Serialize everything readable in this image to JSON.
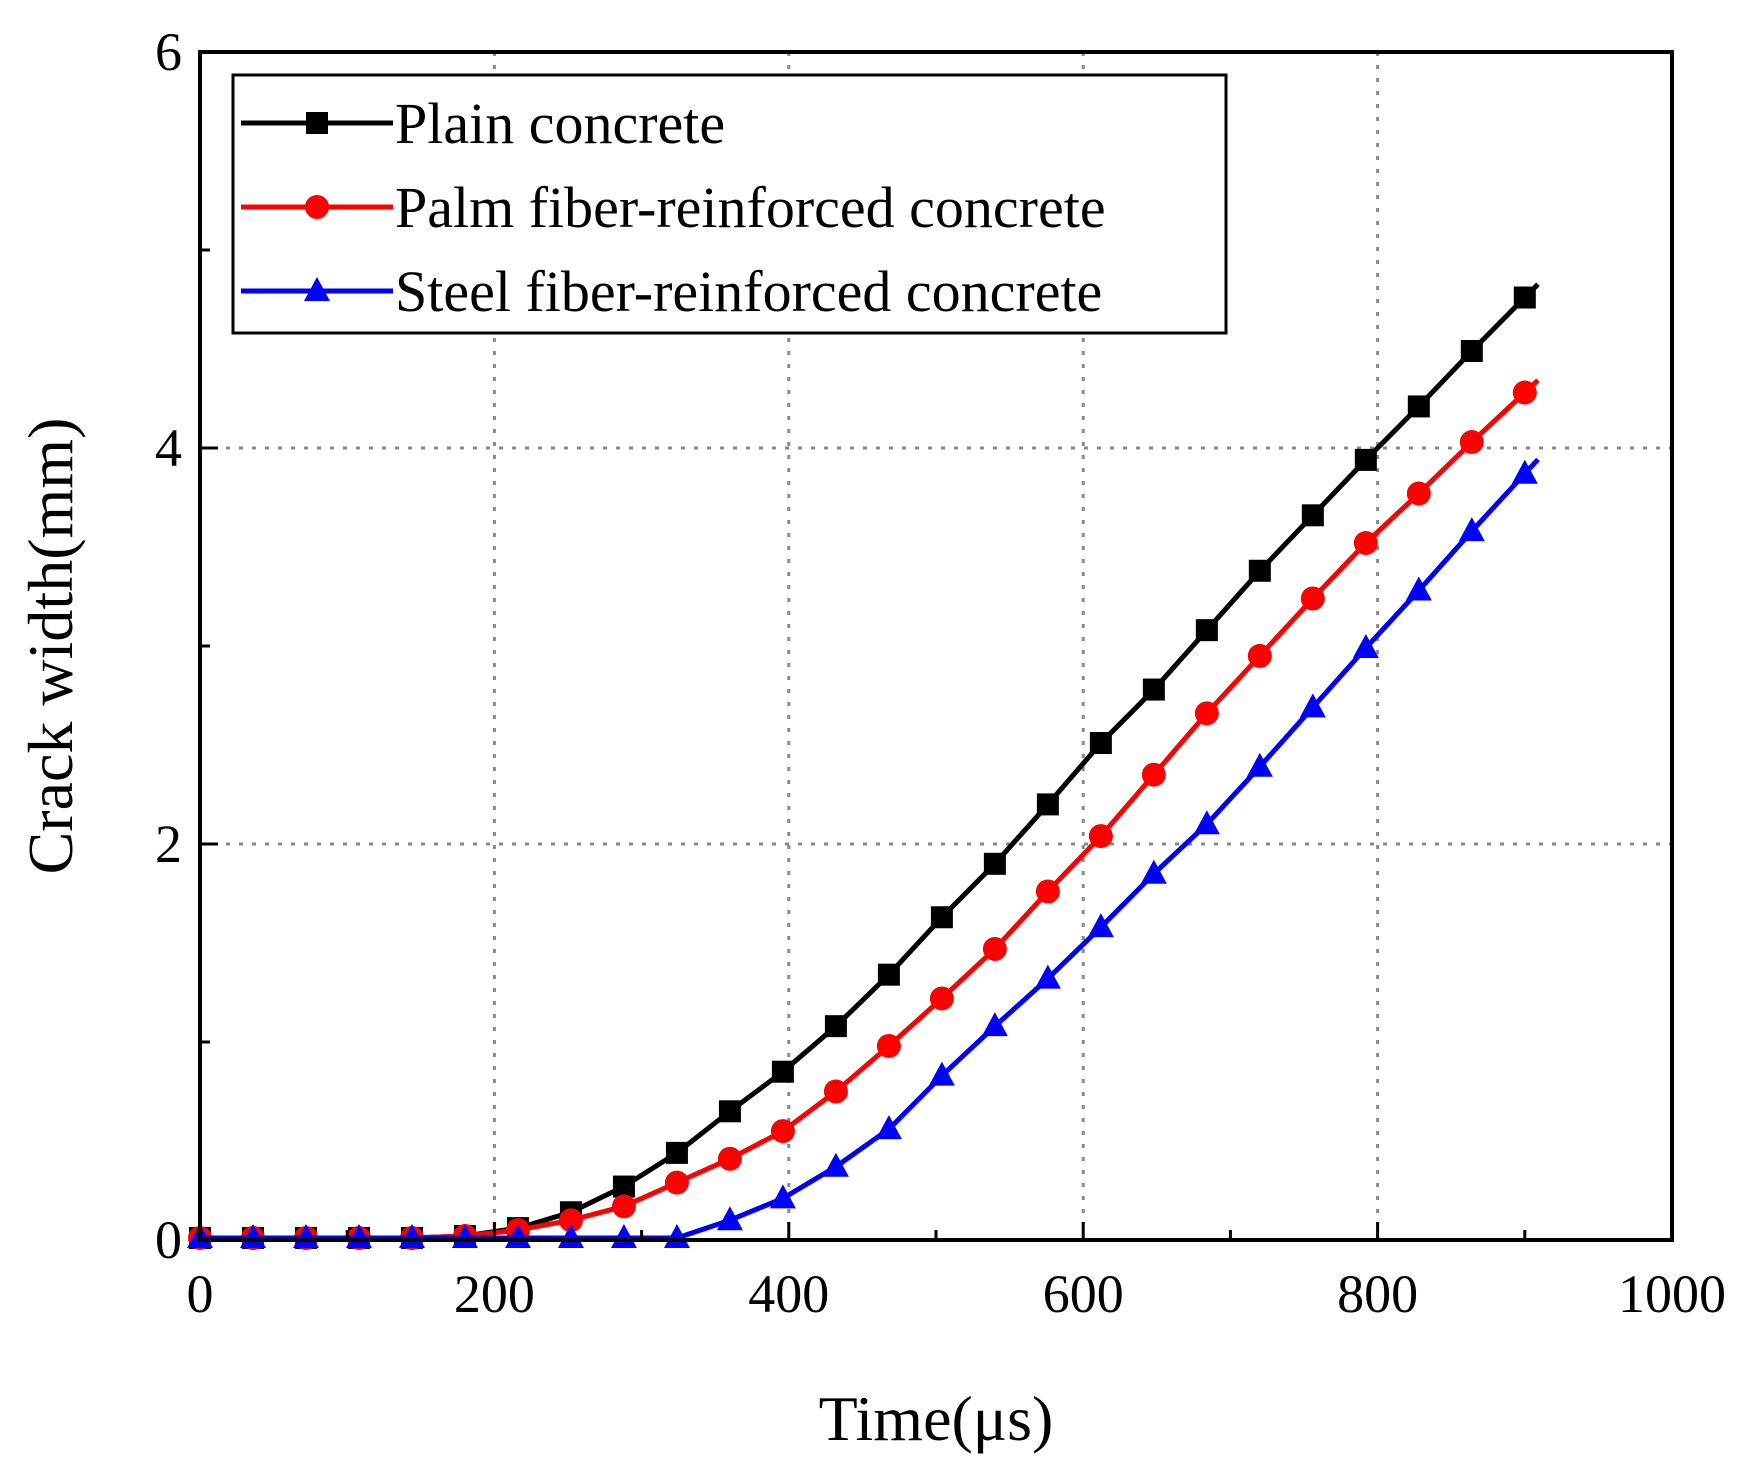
{
  "chart_data": {
    "type": "line",
    "title": "",
    "xlabel": "Time(μs)",
    "ylabel": "Crack width(mm)",
    "xlim": [
      0,
      1000
    ],
    "ylim": [
      0,
      6
    ],
    "x_ticks": [
      0,
      200,
      400,
      600,
      800,
      1000
    ],
    "x_tick_labels": [
      "0",
      "200",
      "400",
      "600",
      "800",
      "1000"
    ],
    "y_ticks": [
      0,
      2,
      4,
      6
    ],
    "y_tick_labels": [
      "0",
      "2",
      "4",
      "6"
    ],
    "grid": true,
    "legend_position": "top-left",
    "x": [
      0,
      36,
      72,
      108,
      144,
      180,
      216,
      252,
      288,
      324,
      360,
      396,
      432,
      468,
      504,
      540,
      576,
      612,
      648,
      684,
      720,
      756,
      792,
      828,
      864,
      900
    ],
    "series": [
      {
        "name": "Plain concrete",
        "color": "#000000",
        "marker": "square",
        "values": [
          0.01,
          0.01,
          0.01,
          0.01,
          0.01,
          0.02,
          0.06,
          0.14,
          0.27,
          0.44,
          0.65,
          0.85,
          1.08,
          1.34,
          1.63,
          1.9,
          2.2,
          2.51,
          2.78,
          3.08,
          3.38,
          3.66,
          3.94,
          4.21,
          4.49,
          4.76
        ]
      },
      {
        "name": "Palm fiber-reinforced concrete",
        "color": "#ff0000",
        "marker": "circle",
        "values": [
          0.01,
          0.01,
          0.01,
          0.01,
          0.01,
          0.02,
          0.05,
          0.1,
          0.17,
          0.29,
          0.41,
          0.55,
          0.75,
          0.98,
          1.22,
          1.47,
          1.76,
          2.04,
          2.35,
          2.66,
          2.95,
          3.24,
          3.52,
          3.77,
          4.03,
          4.28
        ]
      },
      {
        "name": "Steel fiber-reinforced concrete",
        "color": "#0000ff",
        "marker": "triangle",
        "values": [
          0.01,
          0.01,
          0.01,
          0.01,
          0.01,
          0.01,
          0.01,
          0.01,
          0.01,
          0.01,
          0.1,
          0.21,
          0.37,
          0.56,
          0.83,
          1.08,
          1.32,
          1.58,
          1.85,
          2.1,
          2.39,
          2.69,
          2.99,
          3.28,
          3.58,
          3.87
        ]
      }
    ]
  }
}
